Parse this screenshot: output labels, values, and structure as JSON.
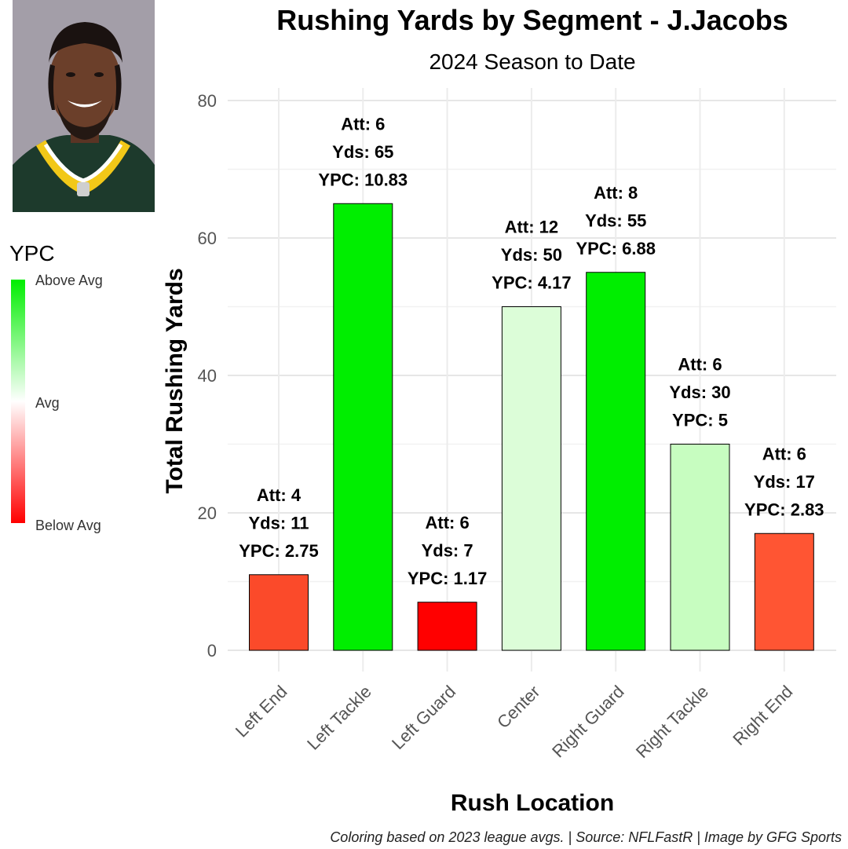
{
  "chart_data": {
    "type": "bar",
    "title": "Rushing Yards by Segment - J.Jacobs",
    "subtitle": "2024 Season to Date",
    "xlabel": "Rush Location",
    "ylabel": "Total Rushing Yards",
    "ylim": [
      0,
      80
    ],
    "yticks": [
      0,
      20,
      40,
      60,
      80
    ],
    "grid": true,
    "categories": [
      "Left End",
      "Left Tackle",
      "Left Guard",
      "Center",
      "Right Guard",
      "Right Tackle",
      "Right End"
    ],
    "values": [
      11,
      65,
      7,
      50,
      55,
      30,
      17
    ],
    "attempts": [
      4,
      6,
      6,
      12,
      8,
      6,
      6
    ],
    "ypc": [
      2.75,
      10.83,
      1.17,
      4.17,
      6.88,
      5,
      2.83
    ],
    "bar_colors": [
      "#fb4a2a",
      "#00ee00",
      "#ff0000",
      "#dcfdd8",
      "#00ee00",
      "#c7fdc0",
      "#ff5533"
    ],
    "label_prefixes": {
      "att": "Att: ",
      "yds": "Yds: ",
      "ypc": "YPC: "
    },
    "legend": {
      "title": "YPC",
      "labels": [
        "Above Avg",
        "Avg",
        "Below Avg"
      ],
      "colors": [
        "#00ee00",
        "#ffffff",
        "#ff0000"
      ]
    },
    "caption": "Coloring based on 2023 league avgs. | Source: NFLFastR | Image by GFG Sports"
  }
}
